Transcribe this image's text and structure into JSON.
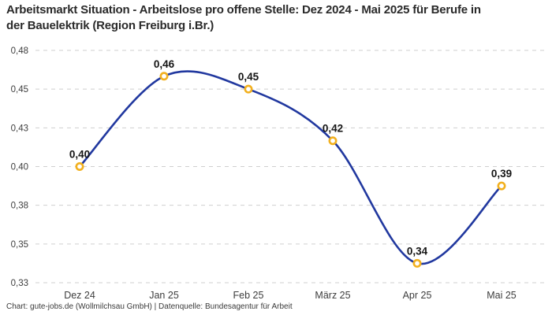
{
  "chart_data": {
    "type": "line",
    "title": "Arbeitsmarkt Situation - Arbeitslose pro offene Stelle: Dez 2024 - Mai 2025 für Berufe in der Bauelektrik (Region Freiburg i.Br.)",
    "attribution": "Chart: gute-jobs.de (Wollmilchsau GmbH) | Datenquelle: Bundesagentur für Arbeit",
    "categories": [
      "Dez 24",
      "Jan 25",
      "Feb 25",
      "März 25",
      "Apr 25",
      "Mai 25"
    ],
    "series": [
      {
        "name": "Arbeitslose pro offene Stelle",
        "values": [
          0.4,
          0.46,
          0.45,
          0.42,
          0.34,
          0.39
        ],
        "point_labels": [
          "0,40",
          "0,46",
          "0,45",
          "0,42",
          "0,34",
          "0,39"
        ]
      }
    ],
    "y_ticks": {
      "values": [
        0.33,
        0.35,
        0.38,
        0.4,
        0.43,
        0.45,
        0.48
      ],
      "labels": [
        "0,33",
        "0,35",
        "0,38",
        "0,40",
        "0,43",
        "0,45",
        "0,48"
      ]
    },
    "ylim": [
      0.33,
      0.48
    ],
    "xlabel": "",
    "ylabel": "",
    "legend": "none",
    "grid": "horizontal-dashed",
    "line_style": "curved",
    "marker": "open-circle",
    "decimal_separator": ",",
    "colors": {
      "line": "#21389f",
      "marker_ring": "#f2b01e",
      "marker_fill": "#ffffff",
      "grid": "#cfcfcf",
      "title": "#2a2a2a",
      "axis_text": "#3d3d3d",
      "point_label": "#141414"
    }
  }
}
